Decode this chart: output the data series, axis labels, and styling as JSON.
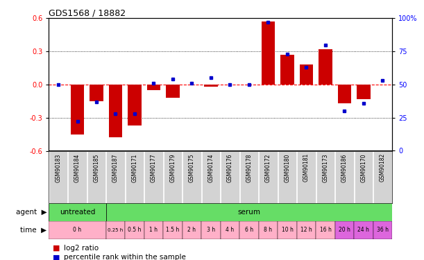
{
  "title": "GDS1568 / 18882",
  "samples": [
    "GSM90183",
    "GSM90184",
    "GSM90185",
    "GSM90187",
    "GSM90171",
    "GSM90177",
    "GSM90179",
    "GSM90175",
    "GSM90174",
    "GSM90176",
    "GSM90178",
    "GSM90172",
    "GSM90180",
    "GSM90181",
    "GSM90173",
    "GSM90186",
    "GSM90170",
    "GSM90182"
  ],
  "log2_ratio": [
    0.0,
    -0.45,
    -0.15,
    -0.48,
    -0.37,
    -0.05,
    -0.12,
    0.0,
    -0.02,
    0.0,
    0.0,
    0.57,
    0.27,
    0.18,
    0.32,
    -0.17,
    -0.13,
    0.0
  ],
  "percentile": [
    50,
    22,
    37,
    28,
    28,
    51,
    54,
    51,
    55,
    50,
    50,
    97,
    73,
    63,
    80,
    30,
    36,
    53
  ],
  "untreated_count": 3,
  "ylim_left": [
    -0.6,
    0.6
  ],
  "ylim_right": [
    0,
    100
  ],
  "yticks_left": [
    -0.6,
    -0.3,
    0.0,
    0.3,
    0.6
  ],
  "yticks_right": [
    0,
    25,
    50,
    75,
    100
  ],
  "bar_color": "#cc0000",
  "dot_color": "#0000cc",
  "bg_color": "#ffffff",
  "sample_bg": "#d3d3d3",
  "agent_color": "#66dd66",
  "time_pink": "#ffb0c8",
  "time_violet": "#dd66dd",
  "time_spans": [
    {
      "label": "0 h",
      "start": 0,
      "end": 3,
      "color": "#ffb0c8"
    },
    {
      "label": "0.25 h",
      "start": 3,
      "end": 4,
      "color": "#ffb0c8"
    },
    {
      "label": "0.5 h",
      "start": 4,
      "end": 5,
      "color": "#ffb0c8"
    },
    {
      "label": "1 h",
      "start": 5,
      "end": 6,
      "color": "#ffb0c8"
    },
    {
      "label": "1.5 h",
      "start": 6,
      "end": 7,
      "color": "#ffb0c8"
    },
    {
      "label": "2 h",
      "start": 7,
      "end": 8,
      "color": "#ffb0c8"
    },
    {
      "label": "3 h",
      "start": 8,
      "end": 9,
      "color": "#ffb0c8"
    },
    {
      "label": "4 h",
      "start": 9,
      "end": 10,
      "color": "#ffb0c8"
    },
    {
      "label": "6 h",
      "start": 10,
      "end": 11,
      "color": "#ffb0c8"
    },
    {
      "label": "8 h",
      "start": 11,
      "end": 12,
      "color": "#ffb0c8"
    },
    {
      "label": "10 h",
      "start": 12,
      "end": 13,
      "color": "#ffb0c8"
    },
    {
      "label": "12 h",
      "start": 13,
      "end": 14,
      "color": "#ffb0c8"
    },
    {
      "label": "16 h",
      "start": 14,
      "end": 15,
      "color": "#ffb0c8"
    },
    {
      "label": "20 h",
      "start": 15,
      "end": 16,
      "color": "#dd66dd"
    },
    {
      "label": "24 h",
      "start": 16,
      "end": 17,
      "color": "#dd66dd"
    },
    {
      "label": "36 h",
      "start": 17,
      "end": 18,
      "color": "#dd66dd"
    }
  ]
}
